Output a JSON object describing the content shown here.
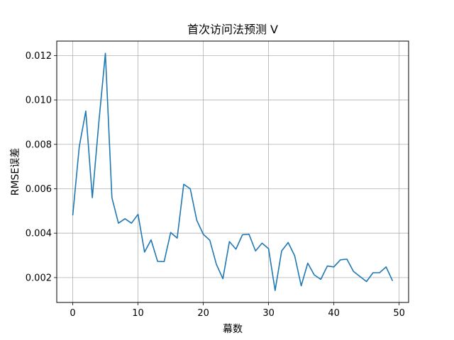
{
  "chart_data": {
    "type": "line",
    "title": "首次访问法预测 V",
    "xlabel": "幕数",
    "ylabel": "RMSE误差",
    "xlim": [
      -2.45,
      51.45
    ],
    "ylim": [
      0.00088,
      0.01265
    ],
    "xticks": [
      0,
      10,
      20,
      30,
      40,
      50
    ],
    "xtick_labels": [
      "0",
      "10",
      "20",
      "30",
      "40",
      "50"
    ],
    "yticks": [
      0.002,
      0.004,
      0.006,
      0.008,
      0.01,
      0.012
    ],
    "ytick_labels": [
      "0.002",
      "0.004",
      "0.006",
      "0.008",
      "0.010",
      "0.012"
    ],
    "grid": true,
    "color": "#1f77b4",
    "series": [
      {
        "x": [
          0,
          1,
          2,
          3,
          4,
          5,
          6,
          7,
          8,
          9,
          10,
          11,
          12,
          13,
          14,
          15,
          16,
          17,
          18,
          19,
          20,
          21,
          22,
          23,
          24,
          25,
          26,
          27,
          28,
          29,
          30,
          31,
          32,
          33,
          34,
          35,
          36,
          37,
          38,
          39,
          40,
          41,
          42,
          43,
          44,
          45,
          46,
          47,
          48,
          49
        ],
        "values": [
          0.0048,
          0.0079,
          0.0095,
          0.0056,
          0.009,
          0.0121,
          0.0056,
          0.00445,
          0.00465,
          0.00445,
          0.00485,
          0.00315,
          0.0037,
          0.00273,
          0.00272,
          0.00403,
          0.00378,
          0.0062,
          0.006,
          0.00458,
          0.00395,
          0.00368,
          0.0026,
          0.00195,
          0.00362,
          0.00328,
          0.00393,
          0.00395,
          0.0032,
          0.00355,
          0.0033,
          0.00142,
          0.0032,
          0.00358,
          0.00298,
          0.00163,
          0.00265,
          0.00212,
          0.00192,
          0.00252,
          0.00248,
          0.0028,
          0.00283,
          0.00228,
          0.00205,
          0.00182,
          0.00222,
          0.00222,
          0.00248,
          0.00185
        ]
      }
    ]
  }
}
